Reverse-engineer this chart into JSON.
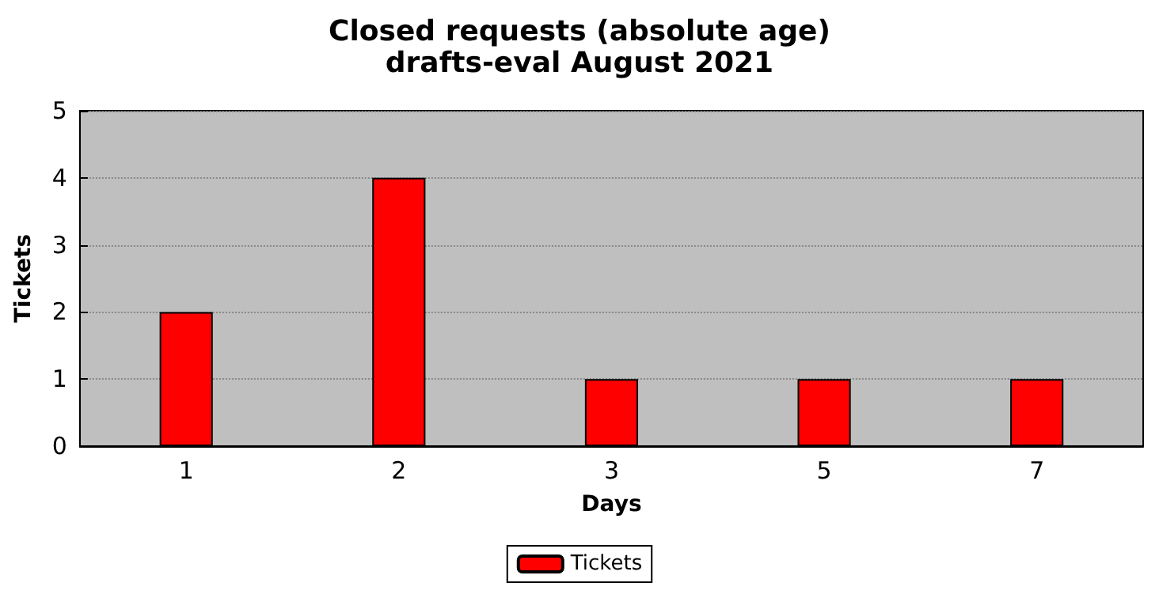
{
  "chart_data": {
    "type": "bar",
    "title": "Closed requests (absolute age)",
    "subtitle": "drafts-eval August 2021",
    "xlabel": "Days",
    "ylabel": "Tickets",
    "categories": [
      "1",
      "2",
      "3",
      "5",
      "7"
    ],
    "series": [
      {
        "name": "Tickets",
        "color": "#ff0000",
        "values": [
          2,
          4,
          1,
          1,
          1
        ]
      }
    ],
    "ylim": [
      0,
      5
    ],
    "yticks": [
      0,
      1,
      2,
      3,
      4,
      5
    ],
    "grid": "y",
    "legend": "bottom"
  }
}
